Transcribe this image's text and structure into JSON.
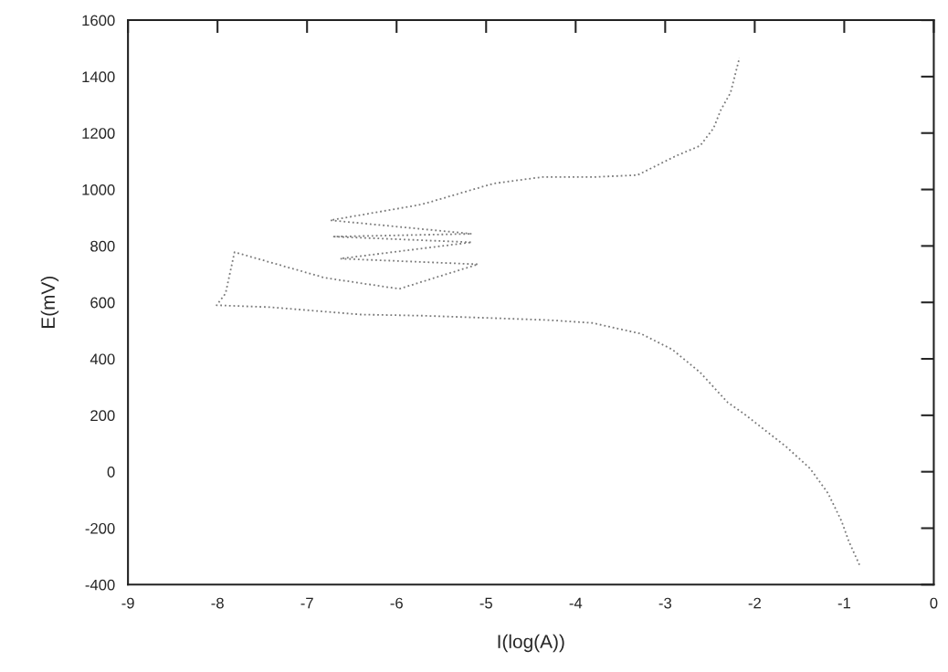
{
  "chart_data": {
    "type": "line",
    "xlabel": "I(log(A))",
    "ylabel": "E(mV)",
    "xlim": [
      -9,
      0
    ],
    "xticks": [
      -9,
      -8,
      -7,
      -6,
      -5,
      -4,
      -3,
      -2,
      -1,
      0
    ],
    "ylim": [
      -400,
      1600
    ],
    "yticks": [
      -400,
      -200,
      0,
      200,
      400,
      600,
      800,
      1000,
      1200,
      1400,
      1600
    ],
    "grid": false,
    "legend": false,
    "marker": "none",
    "line_style": "dotted",
    "series": [
      {
        "color": "#7a7a7a",
        "x": [
          -0.83,
          -0.95,
          -1.03,
          -1.18,
          -1.38,
          -1.65,
          -2.11,
          -2.3,
          -2.61,
          -2.92,
          -3.27,
          -3.81,
          -4.28,
          -4.89,
          -5.72,
          -6.4,
          -7.41,
          -8.01,
          -7.91,
          -7.81,
          -6.8,
          -5.97,
          -5.09,
          -6.63,
          -5.16,
          -6.7,
          -5.16,
          -6.74,
          -5.72,
          -4.92,
          -4.38,
          -3.81,
          -3.31,
          -2.88,
          -2.61,
          -2.46,
          -2.38,
          -2.27,
          -2.17
        ],
        "values": [
          -330,
          -246,
          -175,
          -77,
          11,
          89,
          203,
          245,
          352,
          433,
          489,
          527,
          537,
          544,
          553,
          557,
          583,
          590,
          632,
          778,
          687,
          648,
          735,
          755,
          813,
          833,
          843,
          891,
          947,
          1021,
          1044,
          1044,
          1051,
          1119,
          1155,
          1217,
          1281,
          1343,
          1467
        ]
      }
    ]
  }
}
